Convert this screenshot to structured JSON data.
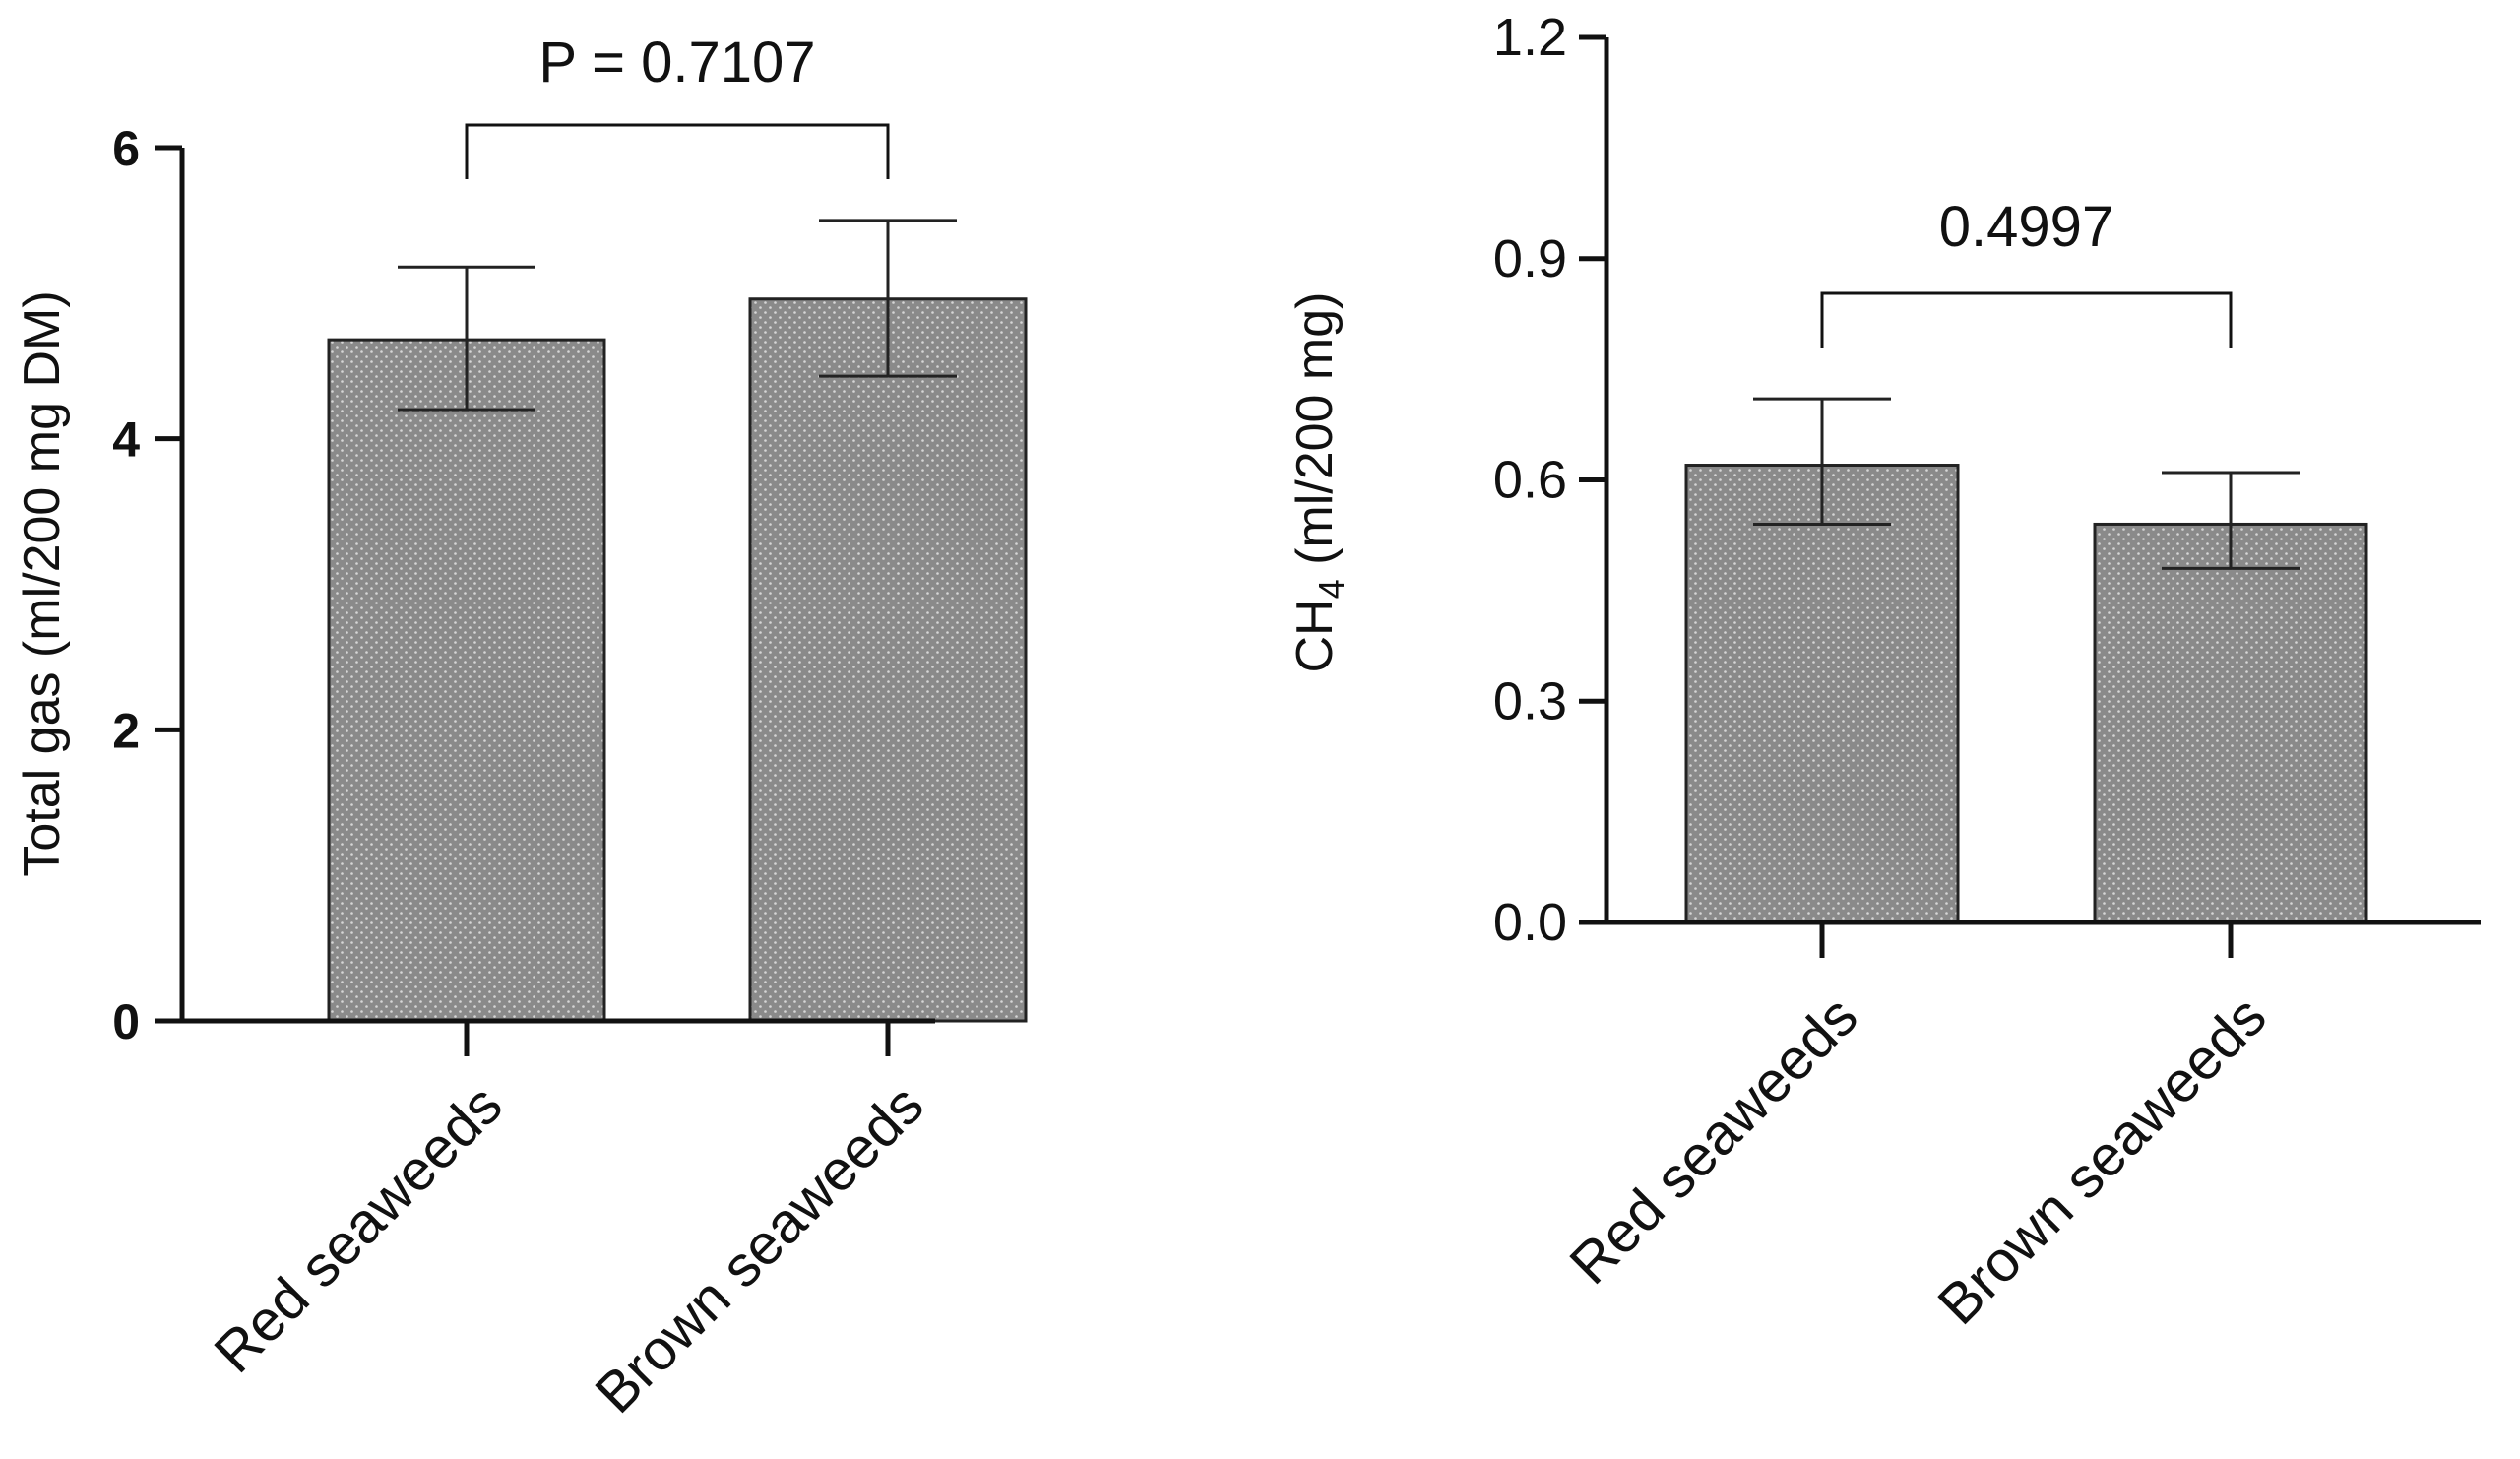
{
  "chart_data": [
    {
      "type": "bar",
      "id": "total-gas",
      "title": "",
      "categories": [
        "Red seaweeds",
        "Brown seaweeds"
      ],
      "values": [
        4.68,
        4.96
      ],
      "error_upper": [
        5.18,
        5.5
      ],
      "error_lower": [
        4.2,
        4.43
      ],
      "xlabel": "",
      "ylabel": "Total gas (ml/200 mg DM)",
      "ylim": [
        0,
        6
      ],
      "yticks": [
        0,
        2,
        4,
        6
      ],
      "ytick_labels": [
        "0",
        "2",
        "4",
        "6"
      ],
      "comparison_label": "P = 0.7107",
      "bar_color": "#8a8a8a",
      "grid": false
    },
    {
      "type": "bar",
      "id": "ch4",
      "title": "",
      "categories": [
        "Red seaweeds",
        "Brown seaweeds"
      ],
      "values": [
        0.62,
        0.54
      ],
      "error_upper": [
        0.71,
        0.61
      ],
      "error_lower": [
        0.54,
        0.48
      ],
      "xlabel": "",
      "ylabel_main": "CH",
      "ylabel_sub": "4",
      "ylabel_rest": " (ml/200 mg)",
      "ylim": [
        0,
        1.2
      ],
      "yticks": [
        0,
        0.3,
        0.6,
        0.9,
        1.2
      ],
      "ytick_labels": [
        "0.0",
        "0.3",
        "0.6",
        "0.9",
        "1.2"
      ],
      "comparison_label": "0.4997",
      "bar_color": "#8a8a8a",
      "grid": false
    }
  ]
}
